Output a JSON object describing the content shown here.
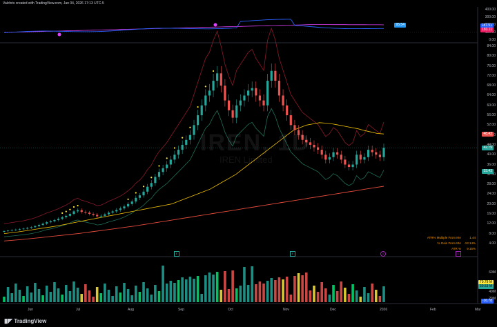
{
  "header": {
    "caption": "Valchris created with TradingView.com, Jan 04, 2026 17:13 UTC-5"
  },
  "watermark": {
    "symbol": "IREN, 1D",
    "name": "IREN Limited"
  },
  "colors": {
    "up": "#26a69a",
    "down": "#ef5350",
    "ma_short": "#f0c000",
    "ma_long": "#e74c3c",
    "band": "#8b1a2a",
    "band_lower": "#1f6f5a",
    "rs_line": "#2962ff",
    "rs_ma": "#e040fb",
    "dots": "#ffeb3b"
  },
  "top_panel": {
    "axis": [
      "400.00",
      "300.00",
      "200.00",
      "100.00",
      "0.00"
    ],
    "tags": [
      {
        "text": "95.54",
        "color": "#2196f3"
      },
      {
        "text": "187.51",
        "color": "#2962ff"
      },
      {
        "text": "183.11",
        "color": "#e91e63"
      }
    ]
  },
  "price_axis": [
    "84.00",
    "80.00",
    "76.00",
    "72.00",
    "68.00",
    "64.00",
    "60.00",
    "56.00",
    "52.00",
    "48.00",
    "44.00",
    "40.00",
    "36.00",
    "32.00",
    "28.00",
    "24.00",
    "20.00",
    "16.00",
    "12.00",
    "8.00",
    "4.00"
  ],
  "price_tags": [
    {
      "text": "48.42",
      "color": "#ef5350"
    },
    {
      "text": "42.79",
      "color": "#26a69a"
    },
    {
      "text": "33.43",
      "color": "#26a69a"
    }
  ],
  "indicators": [
    {
      "label": "ATR% Multiple From MA",
      "value": "1.44"
    },
    {
      "label": "% Gain From MA",
      "value": "-13.14%"
    },
    {
      "label": "ATR %",
      "value": "9.15%"
    }
  ],
  "volume_axis": {
    "tags": [
      {
        "text": "70.79 M",
        "color": "#ffeb3b"
      },
      {
        "text": "30.53 M",
        "color": "#26a69a"
      }
    ],
    "labels": [
      "60M",
      "40M",
      "20M"
    ],
    "bottom_tag": {
      "text": "-16.78",
      "color": "#2962ff"
    }
  },
  "dates": [
    "Jun",
    "Jul",
    "Aug",
    "Sep",
    "Oct",
    "Nov",
    "Dec",
    "2026",
    "Feb",
    "Mar"
  ],
  "footer": {
    "brand": "TradingView"
  },
  "chart_data": {
    "type": "candlestick",
    "series_close": [
      9,
      9.2,
      9.4,
      9.6,
      9.8,
      10,
      10.3,
      10.6,
      11,
      11.5,
      12,
      12.6,
      13,
      13.5,
      14,
      14.6,
      15.2,
      16,
      17,
      17.5,
      16.8,
      16.5,
      16,
      15.6,
      15,
      15.2,
      15.8,
      16.5,
      17,
      17.6,
      18.2,
      19,
      20,
      21,
      22.5,
      23.5,
      25,
      27,
      28.5,
      31,
      33,
      34.5,
      36,
      38,
      40,
      42,
      44,
      46,
      48,
      52,
      56,
      60,
      64,
      66,
      70,
      73,
      68,
      62,
      58,
      55,
      60,
      62,
      64,
      66,
      67,
      64,
      62,
      60,
      70,
      74,
      70,
      64,
      60,
      56,
      52,
      50,
      48,
      46,
      45,
      44,
      43,
      42,
      40,
      38,
      39,
      41,
      40,
      38,
      36,
      35,
      36,
      40,
      38,
      39,
      42,
      41,
      40,
      39,
      42.8
    ],
    "ma_short": [
      8,
      8.3,
      8.6,
      9,
      9.4,
      9.8,
      10.2,
      10.6,
      11,
      11.5,
      12,
      12.5,
      13,
      13.5,
      14,
      14.5,
      15,
      15.5,
      16,
      16.5,
      17,
      17.5,
      18,
      18.5,
      19,
      19.5,
      20,
      21,
      22,
      23,
      24,
      25,
      26,
      27.5,
      29,
      30.5,
      32,
      34,
      36,
      38,
      40,
      42,
      44,
      46,
      48,
      50,
      51,
      52,
      52.5,
      53,
      52.8,
      52.5,
      52,
      51.5,
      51,
      50.5,
      49.8,
      49.2,
      48.6,
      48.4
    ],
    "ma_long": [
      5,
      5.3,
      5.6,
      6,
      6.4,
      6.8,
      7.2,
      7.6,
      8,
      8.5,
      9,
      9.5,
      10,
      10.5,
      11,
      11.6,
      12.2,
      12.8,
      13.4,
      14,
      14.6,
      15.2,
      15.8,
      16.4,
      17,
      17.6,
      18.2,
      18.8,
      19.4,
      20,
      20.6,
      21.2,
      21.8,
      22.4,
      23,
      23.6,
      24.2,
      24.8,
      25.4,
      26,
      26.6,
      27.2
    ]
  }
}
